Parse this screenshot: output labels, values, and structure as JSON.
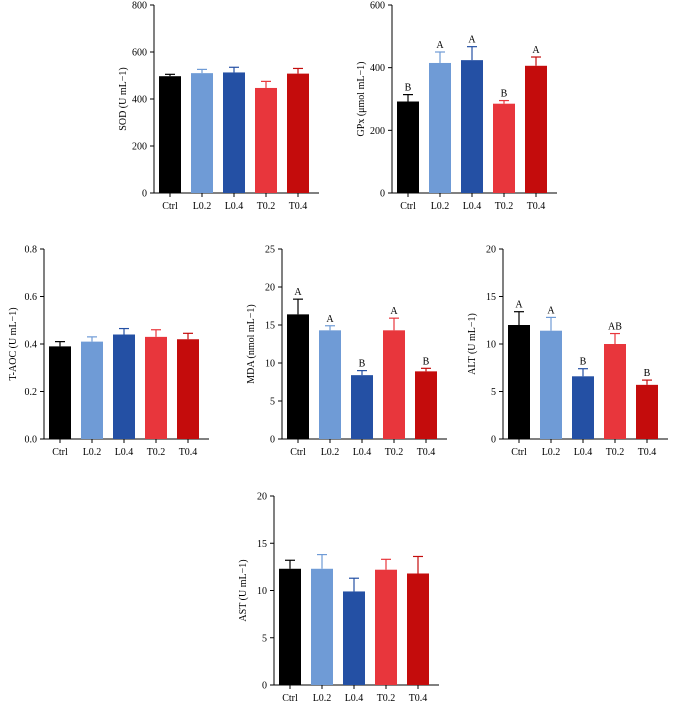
{
  "colors": {
    "Ctrl": "#000000",
    "L0.2": "#6f9bd6",
    "L0.4": "#2450a4",
    "T0.2": "#e8363c",
    "T0.4": "#c40c0c"
  },
  "chart_data": [
    {
      "type": "bar",
      "ylabel": "SOD (U mL−1)",
      "ylim": [
        0,
        800
      ],
      "yticks": [
        0,
        200,
        400,
        600,
        800
      ],
      "categories": [
        "Ctrl",
        "L0.2",
        "L0.4",
        "T0.2",
        "T0.4"
      ],
      "values": [
        497,
        510,
        513,
        447,
        508
      ],
      "errors": [
        8,
        16,
        22,
        28,
        22
      ],
      "labels": [
        "",
        "",
        "",
        "",
        ""
      ]
    },
    {
      "type": "bar",
      "ylabel": "GPx (μmol mL−1)",
      "ylim": [
        0,
        600
      ],
      "yticks": [
        0,
        200,
        400,
        600
      ],
      "categories": [
        "Ctrl",
        "L0.2",
        "L0.4",
        "T0.2",
        "T0.4"
      ],
      "values": [
        292,
        415,
        424,
        285,
        406
      ],
      "errors": [
        22,
        35,
        43,
        10,
        28
      ],
      "labels": [
        "B",
        "A",
        "A",
        "B",
        "A"
      ]
    },
    {
      "type": "bar",
      "ylabel": "T-AOC (U mL−1)",
      "ylim": [
        0,
        0.8
      ],
      "yticks": [
        0.0,
        0.2,
        0.4,
        0.6,
        0.8
      ],
      "categories": [
        "Ctrl",
        "L0.2",
        "L0.4",
        "T0.2",
        "T0.4"
      ],
      "values": [
        0.39,
        0.41,
        0.44,
        0.43,
        0.42
      ],
      "errors": [
        0.02,
        0.02,
        0.025,
        0.03,
        0.025
      ],
      "labels": [
        "",
        "",
        "",
        "",
        ""
      ]
    },
    {
      "type": "bar",
      "ylabel": "MDA (nmol mL−1)",
      "ylim": [
        0,
        25
      ],
      "yticks": [
        0,
        5,
        10,
        15,
        20,
        25
      ],
      "categories": [
        "Ctrl",
        "L0.2",
        "L0.4",
        "T0.2",
        "T0.4"
      ],
      "values": [
        16.4,
        14.3,
        8.4,
        14.3,
        8.9
      ],
      "errors": [
        2.0,
        0.6,
        0.6,
        1.6,
        0.4
      ],
      "labels": [
        "A",
        "A",
        "B",
        "A",
        "B"
      ]
    },
    {
      "type": "bar",
      "ylabel": "ALT (U mL−1)",
      "ylim": [
        0,
        20
      ],
      "yticks": [
        0,
        5,
        10,
        15,
        20
      ],
      "categories": [
        "Ctrl",
        "L0.2",
        "L0.4",
        "T0.2",
        "T0.4"
      ],
      "values": [
        12.0,
        11.4,
        6.6,
        10.0,
        5.7
      ],
      "errors": [
        1.4,
        1.4,
        0.8,
        1.1,
        0.5
      ],
      "labels": [
        "A",
        "A",
        "B",
        "AB",
        "B"
      ]
    },
    {
      "type": "bar",
      "ylabel": "AST (U mL−1)",
      "ylim": [
        0,
        20
      ],
      "yticks": [
        0,
        5,
        10,
        15,
        20
      ],
      "categories": [
        "Ctrl",
        "L0.2",
        "L0.4",
        "T0.2",
        "T0.4"
      ],
      "values": [
        12.3,
        12.3,
        9.9,
        12.2,
        11.8
      ],
      "errors": [
        0.9,
        1.5,
        1.4,
        1.1,
        1.8
      ],
      "labels": [
        "",
        "",
        "",
        "",
        ""
      ]
    }
  ]
}
